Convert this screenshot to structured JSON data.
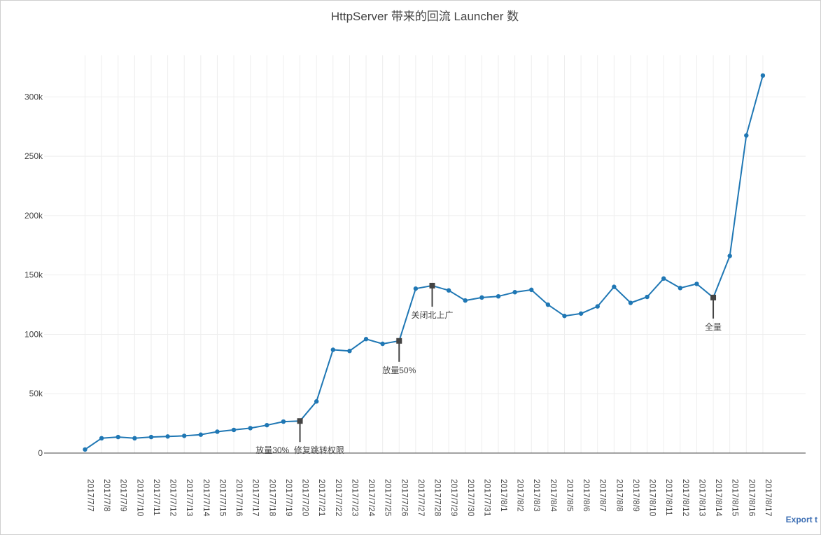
{
  "chart_data": {
    "type": "line",
    "title": "HttpServer 带来的回流 Launcher 数",
    "xlabel": "",
    "ylabel": "",
    "x": [
      "2017/7/7",
      "2017/7/8",
      "2017/7/9",
      "2017/7/10",
      "2017/7/11",
      "2017/7/12",
      "2017/7/13",
      "2017/7/14",
      "2017/7/15",
      "2017/7/16",
      "2017/7/17",
      "2017/7/18",
      "2017/7/19",
      "2017/7/20",
      "2017/7/21",
      "2017/7/22",
      "2017/7/23",
      "2017/7/24",
      "2017/7/25",
      "2017/7/26",
      "2017/7/27",
      "2017/7/28",
      "2017/7/29",
      "2017/7/30",
      "2017/7/31",
      "2017/8/1",
      "2017/8/2",
      "2017/8/3",
      "2017/8/4",
      "2017/8/5",
      "2017/8/6",
      "2017/8/7",
      "2017/8/8",
      "2017/8/9",
      "2017/8/10",
      "2017/8/11",
      "2017/8/12",
      "2017/8/13",
      "2017/8/14",
      "2017/8/15",
      "2017/8/16",
      "2017/8/17"
    ],
    "series": [
      {
        "name": "",
        "color": "#1f77b4",
        "values": [
          3000,
          12500,
          13500,
          12500,
          13500,
          14000,
          14500,
          15500,
          18000,
          19500,
          21000,
          23500,
          26500,
          27000,
          43500,
          87000,
          86000,
          96000,
          92000,
          94500,
          138500,
          141000,
          137000,
          128500,
          131000,
          132000,
          135500,
          137500,
          125000,
          115500,
          117500,
          123500,
          140000,
          126500,
          131500,
          147000,
          139000,
          142500,
          131000,
          166000,
          267500,
          318000
        ]
      }
    ],
    "ylim": [
      0,
      335000
    ],
    "yticks": [
      0,
      50000,
      100000,
      150000,
      200000,
      250000,
      300000
    ],
    "ytick_labels": [
      "0",
      "50k",
      "100k",
      "150k",
      "200k",
      "250k",
      "300k"
    ],
    "grid": true,
    "legend": "none",
    "annotations": [
      {
        "x": "2017/7/20",
        "value": 27000,
        "text": "放量30%  修复跳转权限",
        "direction": "down"
      },
      {
        "x": "2017/7/26",
        "value": 94500,
        "text": "放量50%",
        "direction": "down"
      },
      {
        "x": "2017/7/28",
        "value": 141000,
        "text": "关闭北上广",
        "direction": "down"
      },
      {
        "x": "2017/8/14",
        "value": 131000,
        "text": "全量",
        "direction": "down"
      }
    ]
  },
  "export_link": "Export t"
}
